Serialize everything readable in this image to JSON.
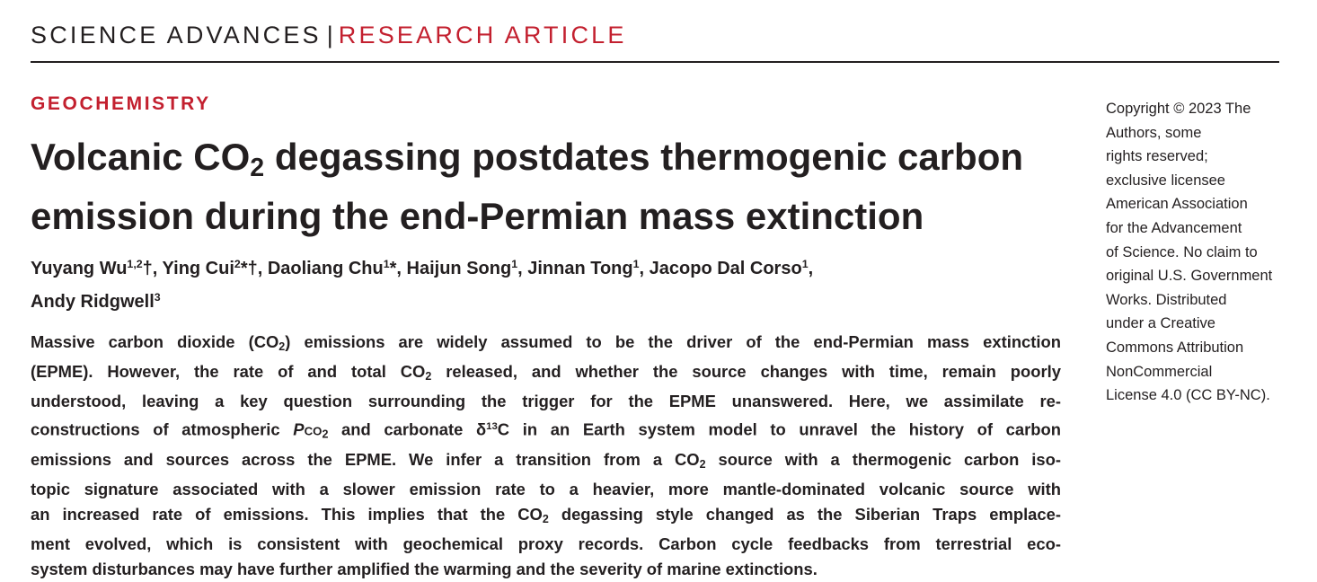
{
  "header": {
    "journal": "SCIENCE ADVANCES",
    "separator": "|",
    "section": "RESEARCH ARTICLE"
  },
  "category": "GEOCHEMISTRY",
  "title": [
    [
      {
        "text": "Volcanic CO"
      },
      {
        "text": "2",
        "style": "sub"
      },
      {
        "text": " degassing postdates thermogenic carbon"
      }
    ],
    [
      {
        "text": "emission during the end-Permian mass extinction"
      }
    ]
  ],
  "authors": [
    [
      {
        "text": "Yuyang Wu"
      },
      {
        "text": "1,2",
        "style": "sup"
      },
      {
        "text": "†"
      },
      {
        "text": ", Ying Cui"
      },
      {
        "text": "2",
        "style": "sup"
      },
      {
        "text": "*†"
      },
      {
        "text": ", Daoliang Chu"
      },
      {
        "text": "1",
        "style": "sup"
      },
      {
        "text": "*"
      },
      {
        "text": ", Haijun Song"
      },
      {
        "text": "1",
        "style": "sup"
      },
      {
        "text": ", Jinnan Tong"
      },
      {
        "text": "1",
        "style": "sup"
      },
      {
        "text": ", Jacopo Dal Corso"
      },
      {
        "text": "1",
        "style": "sup"
      },
      {
        "text": ","
      }
    ],
    [
      {
        "text": "Andy Ridgwell"
      },
      {
        "text": "3",
        "style": "sup"
      }
    ]
  ],
  "abstract": [
    [
      {
        "text": "Massive carbon dioxide (CO"
      },
      {
        "text": "2",
        "style": "sub"
      },
      {
        "text": ") emissions are widely assumed to be the driver of the end-Permian mass extinction"
      }
    ],
    [
      {
        "text": "(EPME). However, the rate of and total CO"
      },
      {
        "text": "2",
        "style": "sub"
      },
      {
        "text": " released, and whether the source changes with time, remain poorly"
      }
    ],
    [
      {
        "text": "understood, leaving a key question surrounding the trigger for the EPME unanswered. Here, we assimilate re-"
      }
    ],
    [
      {
        "text": "constructions of atmospheric "
      },
      {
        "text": "P",
        "style": "italic"
      },
      {
        "text": "CO",
        "style": "small"
      },
      {
        "text": "2",
        "style": "sub"
      },
      {
        "text": " and carbonate δ"
      },
      {
        "text": "13",
        "style": "sup"
      },
      {
        "text": "C in an Earth system model to unravel the history of carbon"
      }
    ],
    [
      {
        "text": "emissions and sources across the EPME. We infer a transition from a CO"
      },
      {
        "text": "2",
        "style": "sub"
      },
      {
        "text": " source with a thermogenic carbon iso-"
      }
    ],
    [
      {
        "text": "topic signature associated with a slower emission rate to a heavier, more mantle-dominated volcanic source with"
      }
    ],
    [
      {
        "text": "an increased rate of emissions. This implies that the CO"
      },
      {
        "text": "2",
        "style": "sub"
      },
      {
        "text": " degassing style changed as the Siberian Traps emplace-"
      }
    ],
    [
      {
        "text": "ment evolved, which is consistent with geochemical proxy records. Carbon cycle feedbacks from terrestrial eco-"
      }
    ],
    [
      {
        "text": "system disturbances may have further amplified the warming and the severity of marine extinctions."
      }
    ]
  ],
  "copyright": [
    "Copyright © 2023 The",
    "Authors, some",
    "rights reserved;",
    "exclusive licensee",
    "American Association",
    "for the Advancement",
    "of Science. No claim to",
    "original U.S. Government",
    "Works. Distributed",
    "under a Creative",
    "Commons Attribution",
    "NonCommercial",
    "License 4.0 (CC BY-NC)."
  ]
}
